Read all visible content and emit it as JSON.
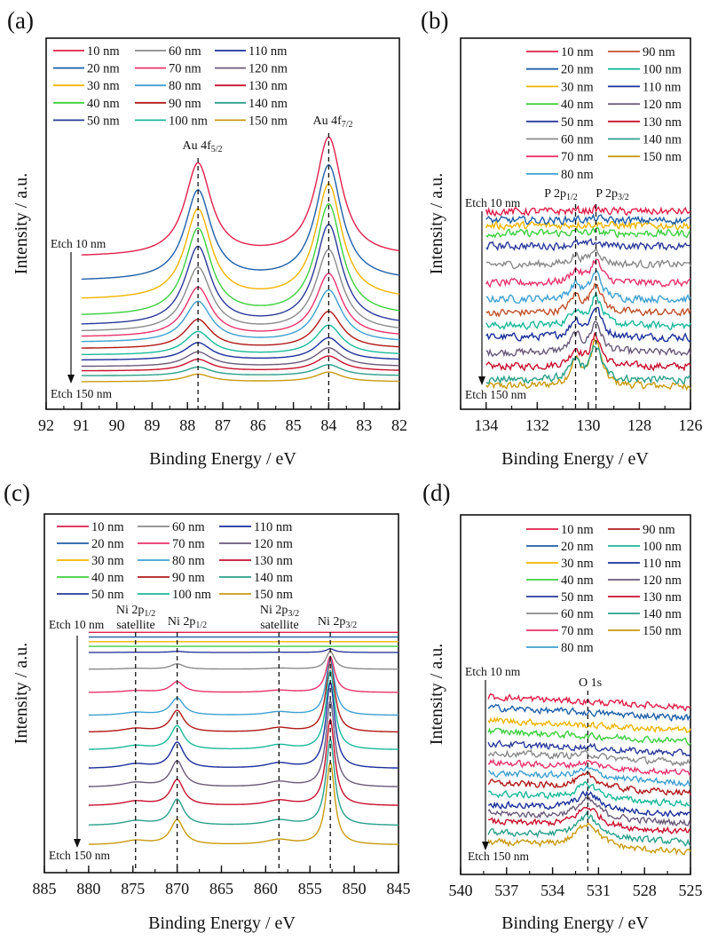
{
  "chart_data": [
    {
      "panel_label": "(a)",
      "type": "line",
      "xlabel": "Binding Energy / eV",
      "ylabel": "Intensity / a.u.",
      "xlim": [
        92,
        82
      ],
      "ylim": [
        0,
        100
      ],
      "xticks": [
        92,
        91,
        90,
        89,
        88,
        87,
        86,
        85,
        84,
        83,
        82
      ],
      "x_range_data": [
        91,
        82
      ],
      "grid": false,
      "legend_placement": "top-left",
      "series_names": [
        "10 nm",
        "20 nm",
        "30 nm",
        "40 nm",
        "50 nm",
        "60 nm",
        "70 nm",
        "80 nm",
        "90 nm",
        "100 nm",
        "110 nm",
        "120 nm",
        "130 nm",
        "140 nm",
        "150 nm"
      ],
      "colors": [
        "#e0204a",
        "#1f5fa8",
        "#f0b400",
        "#3ecf3e",
        "#2a3a9a",
        "#8a8a8a",
        "#e8336b",
        "#3ea0d0",
        "#b01818",
        "#1bb89a",
        "#1a2f9a",
        "#6a5a7a",
        "#c8102e",
        "#2aa08a",
        "#c89a10"
      ],
      "peaks": [
        {
          "center": 87.7,
          "width": 0.45,
          "ratio": 0.78
        },
        {
          "center": 84.0,
          "width": 0.45,
          "ratio": 1.0
        }
      ],
      "offsets": [
        41,
        34.5,
        29.4,
        25,
        22.5,
        20.8,
        19.4,
        18,
        16.3,
        14.6,
        13.2,
        11.5,
        10.3,
        9,
        7.4
      ],
      "peak_amplitudes": [
        32,
        31,
        31,
        30,
        27,
        22,
        17,
        14,
        10,
        8,
        6,
        5,
        4,
        3,
        2.6
      ],
      "noise": 0,
      "baseline_slope": 0,
      "annotations": [
        {
          "text": "Au 4f",
          "sub": "5/2"
        },
        {
          "text": "Au 4f",
          "sub": "7/2"
        }
      ],
      "etch_top": "Etch 10 nm",
      "etch_bottom": "Etch 150 nm"
    },
    {
      "panel_label": "(b)",
      "type": "line",
      "xlabel": "Binding Energy / eV",
      "ylabel": "Intensity / a.u.",
      "xlim": [
        135,
        126
      ],
      "ylim": [
        0,
        100
      ],
      "xticks": [
        134,
        132,
        130,
        128,
        126
      ],
      "x_range_data": [
        134,
        126
      ],
      "grid": false,
      "legend_placement": "top-right",
      "series_names": [
        "10 nm",
        "20 nm",
        "30 nm",
        "40 nm",
        "50 nm",
        "60 nm",
        "70 nm",
        "80 nm",
        "90 nm",
        "100 nm",
        "110 nm",
        "120 nm",
        "130 nm",
        "140 nm",
        "150 nm"
      ],
      "colors": [
        "#e0204a",
        "#1f5fa8",
        "#f0b400",
        "#3ecf3e",
        "#2a3a9a",
        "#8a8a8a",
        "#e8336b",
        "#3ea0d0",
        "#c0502a",
        "#1bb89a",
        "#1a2f9a",
        "#6a5a7a",
        "#c8102e",
        "#2aa08a",
        "#c89a10"
      ],
      "peaks": [
        {
          "center": 130.5,
          "width": 0.25,
          "ratio": 0.55
        },
        {
          "center": 129.7,
          "width": 0.25,
          "ratio": 1.0
        }
      ],
      "offsets": [
        53.3,
        50.9,
        49.5,
        47.4,
        44,
        39,
        34,
        29.7,
        26,
        22.5,
        19.4,
        15.3,
        11.5,
        7.9,
        6.2
      ],
      "peak_amplitudes": [
        0.5,
        0.5,
        0.5,
        0.5,
        1,
        4,
        6,
        7,
        8,
        8,
        8,
        8,
        8,
        9,
        12
      ],
      "noise": 0.9,
      "baseline_slope": 0,
      "annotations": [
        {
          "text": "P 2p",
          "sub": "1/2"
        },
        {
          "text": "P 2p",
          "sub": "3/2"
        }
      ],
      "etch_top": "Etch 10 nm",
      "etch_bottom": "Etch 150 nm"
    },
    {
      "panel_label": "(c)",
      "type": "line",
      "xlabel": "Binding Energy / eV",
      "ylabel": "Intensity / a.u.",
      "xlim": [
        885,
        845
      ],
      "ylim": [
        0,
        100
      ],
      "xticks": [
        885,
        880,
        875,
        870,
        865,
        860,
        855,
        850,
        845
      ],
      "x_range_data": [
        880,
        845
      ],
      "grid": false,
      "legend_placement": "top-left",
      "series_names": [
        "10 nm",
        "20 nm",
        "30 nm",
        "40 nm",
        "50 nm",
        "60 nm",
        "70 nm",
        "80 nm",
        "90 nm",
        "100 nm",
        "110 nm",
        "120 nm",
        "130 nm",
        "140 nm",
        "150 nm"
      ],
      "colors": [
        "#e0204a",
        "#1f5fa8",
        "#f0b400",
        "#3ecf3e",
        "#2a3a9a",
        "#8a8a8a",
        "#e8336b",
        "#3ea0d0",
        "#b01818",
        "#1bb89a",
        "#1a2f9a",
        "#6a5a7a",
        "#c8102e",
        "#2aa08a",
        "#c89a10"
      ],
      "peaks": [
        {
          "center": 874.7,
          "width": 1.8,
          "ratio": 0.05
        },
        {
          "center": 870.0,
          "width": 0.9,
          "ratio": 0.3
        },
        {
          "center": 858.5,
          "width": 1.8,
          "ratio": 0.06
        },
        {
          "center": 852.7,
          "width": 0.6,
          "ratio": 1.0
        }
      ],
      "offsets": [
        67,
        65.7,
        64.4,
        63.1,
        61.4,
        56.7,
        50.2,
        43.8,
        39.1,
        34.2,
        29,
        23.8,
        18.6,
        13.1,
        7.7
      ],
      "peak_amplitudes": [
        0,
        0,
        0,
        0,
        1,
        5,
        10,
        16,
        20,
        22,
        24,
        24,
        24,
        24,
        23
      ],
      "noise": 0,
      "baseline_slope": 0,
      "annotations": [
        {
          "text": "Ni 2p",
          "sub": "1/2",
          "line2": "satellite"
        },
        {
          "text": "Ni 2p",
          "sub": "1/2"
        },
        {
          "text": "Ni 2p",
          "sub": "3/2",
          "line2": "satellite"
        },
        {
          "text": "Ni 2p",
          "sub": "3/2"
        }
      ],
      "etch_top": "Etch 10 nm",
      "etch_bottom": "Etch 150 nm"
    },
    {
      "panel_label": "(d)",
      "type": "line",
      "xlabel": "Binding Energy / eV",
      "ylabel": "Intensity / a.u.",
      "xlim": [
        540,
        525
      ],
      "ylim": [
        0,
        100
      ],
      "xticks": [
        540,
        537,
        534,
        531,
        528,
        525
      ],
      "x_range_data": [
        538.2,
        525
      ],
      "grid": false,
      "legend_placement": "top-right",
      "series_names": [
        "10 nm",
        "20 nm",
        "30 nm",
        "40 nm",
        "50 nm",
        "60 nm",
        "70 nm",
        "80 nm",
        "90 nm",
        "100 nm",
        "110 nm",
        "120 nm",
        "130 nm",
        "140 nm",
        "150 nm"
      ],
      "colors": [
        "#e0204a",
        "#1f5fa8",
        "#f0b400",
        "#3ecf3e",
        "#2a3a9a",
        "#8a8a8a",
        "#e8336b",
        "#3ea0d0",
        "#b01818",
        "#1bb89a",
        "#1a2f9a",
        "#6a5a7a",
        "#c8102e",
        "#2aa08a",
        "#c89a10"
      ],
      "peaks": [
        {
          "center": 531.7,
          "width": 0.9,
          "ratio": 1.0
        }
      ],
      "offsets": [
        48,
        45,
        41.5,
        38.5,
        35,
        32.5,
        29.7,
        26.8,
        24,
        21,
        18,
        15.6,
        13.2,
        10.2,
        7.4
      ],
      "peak_amplitudes": [
        0,
        0,
        0,
        0,
        0.5,
        1,
        1.5,
        2.5,
        3.5,
        4,
        4.5,
        5,
        5.5,
        6,
        7
      ],
      "noise": 0.8,
      "baseline_slope": 0.22,
      "annotations": [
        {
          "text": "O 1s"
        }
      ],
      "etch_top": "Etch 10 nm",
      "etch_bottom": "Etch 150 nm"
    }
  ]
}
